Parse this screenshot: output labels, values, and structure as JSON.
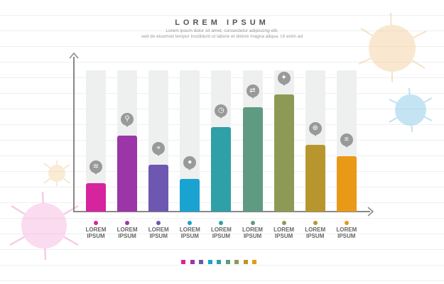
{
  "header": {
    "title": "LOREM IPSUM",
    "line1": "Lorem ipsum dolor sit amet, consectetur adipiscing elit,",
    "line2": "sed do eiusmod tempor incididunt ut labore et dolore magna aliqua. Ut enim ad"
  },
  "chart_data": {
    "type": "bar",
    "title": "LOREM IPSUM",
    "ylim": [
      0,
      100
    ],
    "categories": [
      "LOREM IPSUM",
      "LOREM IPSUM",
      "LOREM IPSUM",
      "LOREM IPSUM",
      "LOREM IPSUM",
      "LOREM IPSUM",
      "LOREM IPSUM",
      "LOREM IPSUM",
      "LOREM IPSUM"
    ],
    "values": [
      20,
      54,
      33,
      23,
      60,
      74,
      83,
      47,
      39
    ],
    "colors": [
      "#d6249f",
      "#9b35a8",
      "#6e57b0",
      "#1aa3d1",
      "#2f9fa8",
      "#5f9a82",
      "#8d9a56",
      "#b8962e",
      "#e89a17"
    ],
    "icons": [
      "wifi-icon",
      "search-icon",
      "location-icon",
      "user-icon",
      "clock-icon",
      "arrows-icon",
      "bulb-icon",
      "globe-icon",
      "list-icon"
    ],
    "labels": [
      [
        "LOREM",
        "IPSUM"
      ],
      [
        "LOREM",
        "IPSUM"
      ],
      [
        "LOREM",
        "IPSUM"
      ],
      [
        "LOREM",
        "IPSUM"
      ],
      [
        "LOREM",
        "IPSUM"
      ],
      [
        "LOREM",
        "IPSUM"
      ],
      [
        "LOREM",
        "IPSUM"
      ],
      [
        "LOREM",
        "IPSUM"
      ],
      [
        "LOREM",
        "IPSUM"
      ]
    ]
  }
}
